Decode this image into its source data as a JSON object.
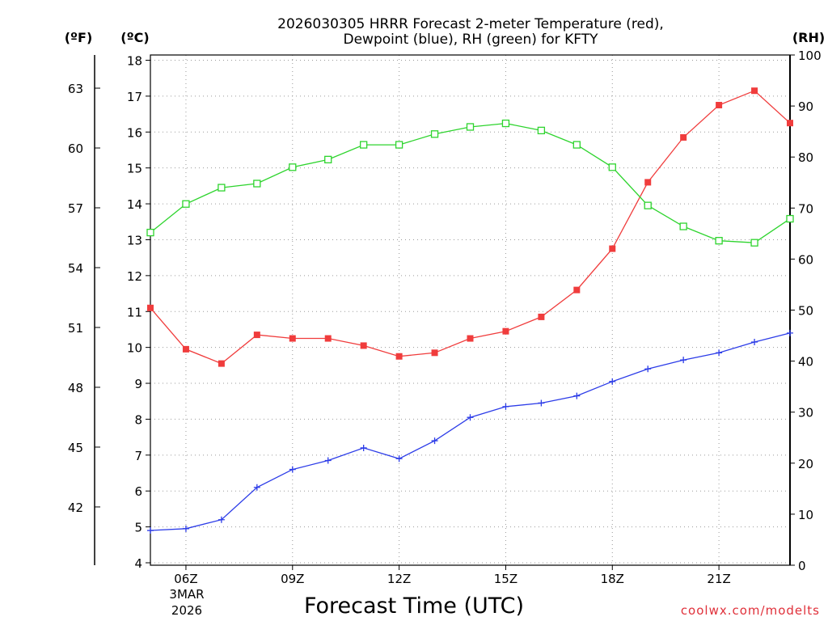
{
  "chart_data": {
    "type": "line",
    "title_line1": "2026030305 HRRR Forecast 2-meter Temperature (red),",
    "title_line2": "Dewpoint (blue), RH (green) for KFTY",
    "xlabel": "Forecast Time (UTC)",
    "unit_f": "(ºF)",
    "unit_c": "(ºC)",
    "unit_rh": "(RH)",
    "credit": "coolwx.com/modelts",
    "hours": [
      5,
      6,
      7,
      8,
      9,
      10,
      11,
      12,
      13,
      14,
      15,
      16,
      17,
      18,
      19,
      20,
      21,
      22,
      23
    ],
    "x_range": [
      5,
      23
    ],
    "x_ticks": [
      {
        "hour": 6,
        "label": "06Z"
      },
      {
        "hour": 9,
        "label": "09Z"
      },
      {
        "hour": 12,
        "label": "12Z"
      },
      {
        "hour": 15,
        "label": "15Z"
      },
      {
        "hour": 18,
        "label": "18Z"
      },
      {
        "hour": 21,
        "label": "21Z"
      }
    ],
    "date_label_line1": "3MAR",
    "date_label_line2": "2026",
    "ylim_c": [
      4,
      18
    ],
    "c_ticks": [
      "4",
      "5",
      "6",
      "7",
      "8",
      "9",
      "10",
      "11",
      "12",
      "13",
      "14",
      "15",
      "16",
      "17",
      "18"
    ],
    "f_ticks": [
      "42",
      "45",
      "48",
      "51",
      "54",
      "57",
      "60",
      "63"
    ],
    "ylim_rh": [
      0,
      100
    ],
    "rh_ticks": [
      "0",
      "10",
      "20",
      "30",
      "40",
      "50",
      "60",
      "70",
      "80",
      "90",
      "100"
    ],
    "series": [
      {
        "name": "Temperature",
        "color": "#f03c3c",
        "axis": "c",
        "marker": "filled-square",
        "values": [
          11.1,
          9.95,
          9.55,
          10.35,
          10.25,
          10.25,
          10.05,
          9.75,
          9.85,
          10.25,
          10.45,
          10.85,
          11.6,
          12.75,
          14.6,
          15.85,
          16.75,
          17.15,
          16.25
        ]
      },
      {
        "name": "Dewpoint",
        "color": "#2c3ce8",
        "axis": "c",
        "marker": "plus",
        "values": [
          4.9,
          4.95,
          5.2,
          6.1,
          6.6,
          6.85,
          7.2,
          6.9,
          7.4,
          8.05,
          8.35,
          8.45,
          8.65,
          9.05,
          9.4,
          9.65,
          9.85,
          10.15,
          10.4
        ]
      },
      {
        "name": "RH",
        "color": "#2ed42e",
        "axis": "rh",
        "marker": "open-square",
        "values": [
          65.2,
          70.8,
          74.0,
          74.8,
          78.0,
          79.5,
          82.4,
          82.4,
          84.5,
          85.9,
          86.6,
          85.2,
          82.4,
          78.0,
          70.5,
          66.4,
          63.6,
          63.2,
          67.9
        ]
      }
    ]
  }
}
